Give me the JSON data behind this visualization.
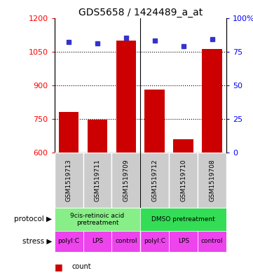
{
  "title": "GDS5658 / 1424489_a_at",
  "samples": [
    "GSM1519713",
    "GSM1519711",
    "GSM1519709",
    "GSM1519712",
    "GSM1519710",
    "GSM1519708"
  ],
  "counts": [
    780,
    748,
    1100,
    882,
    660,
    1060
  ],
  "percentiles": [
    82,
    81,
    85,
    83,
    79,
    84
  ],
  "ymin": 600,
  "ymax": 1200,
  "yticks_left": [
    600,
    750,
    900,
    1050,
    1200
  ],
  "yticks_right": [
    0,
    25,
    50,
    75,
    100
  ],
  "bar_color": "#cc0000",
  "dot_color": "#3333cc",
  "protocol_labels": [
    "9cis-retinoic acid\npretreatment",
    "DMSO pretreatment"
  ],
  "protocol_color_left": "#88ee88",
  "protocol_color_right": "#33dd55",
  "stress_labels": [
    "polyI:C",
    "LPS",
    "control",
    "polyI:C",
    "LPS",
    "control"
  ],
  "stress_color": "#ee44ee",
  "sample_bg_color": "#cccccc",
  "tick_fontsize": 8,
  "title_fontsize": 10
}
